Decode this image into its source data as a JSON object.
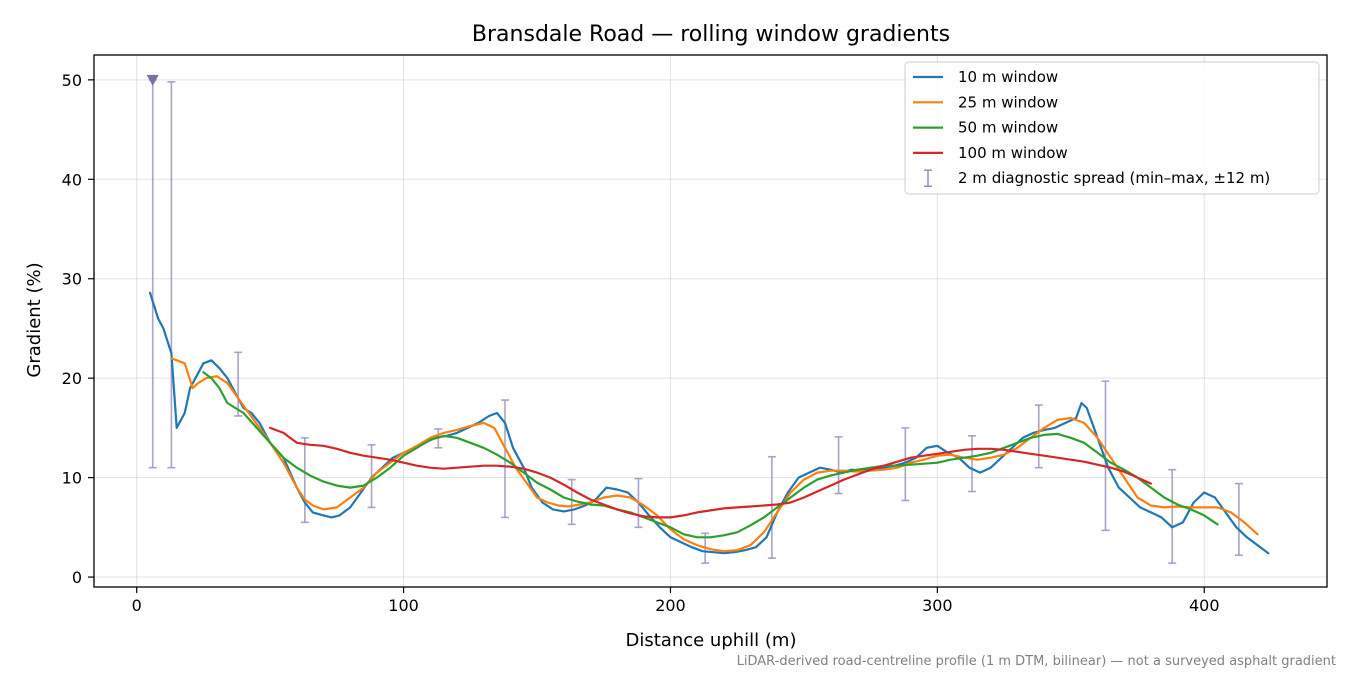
{
  "chart_data": {
    "type": "line",
    "title": "Bransdale Road — rolling window gradients",
    "xlabel": "Distance uphill (m)",
    "ylabel": "Gradient (%)",
    "footnote": "LiDAR-derived road-centreline profile (1 m DTM, bilinear) — not a surveyed asphalt gradient",
    "xlim": [
      -16,
      446
    ],
    "ylim": [
      -1,
      52.5
    ],
    "xticks": [
      0,
      100,
      200,
      300,
      400
    ],
    "yticks": [
      0,
      10,
      20,
      30,
      40,
      50
    ],
    "grid": true,
    "legend_position": "top-right",
    "series": [
      {
        "name": "10 m window",
        "color": "#1f77b4",
        "x": [
          5,
          8,
          10,
          13,
          15,
          18,
          20,
          23,
          25,
          28,
          31,
          34,
          37,
          40,
          43,
          46,
          50,
          55,
          60,
          63,
          66,
          70,
          73,
          76,
          80,
          84,
          88,
          92,
          96,
          100,
          104,
          108,
          112,
          116,
          120,
          124,
          128,
          132,
          135,
          138,
          141,
          145,
          148,
          152,
          156,
          160,
          164,
          168,
          172,
          176,
          180,
          184,
          188,
          192,
          196,
          200,
          204,
          208,
          212,
          216,
          220,
          224,
          228,
          232,
          236,
          240,
          244,
          248,
          252,
          256,
          260,
          264,
          268,
          272,
          276,
          280,
          284,
          288,
          292,
          296,
          300,
          304,
          308,
          312,
          316,
          320,
          324,
          328,
          332,
          336,
          340,
          344,
          348,
          352,
          354,
          356,
          360,
          364,
          368,
          372,
          376,
          380,
          384,
          388,
          392,
          396,
          400,
          404,
          408,
          412,
          416,
          420,
          424
        ],
        "y": [
          28.6,
          26,
          25,
          22.5,
          15,
          16.5,
          19,
          20.5,
          21.5,
          21.8,
          21,
          20,
          18.5,
          17,
          16.5,
          15.5,
          13.5,
          12,
          9,
          7.5,
          6.5,
          6.2,
          6,
          6.2,
          7,
          8.5,
          10,
          11,
          12,
          12.5,
          13,
          13.5,
          14,
          14.2,
          14.5,
          15,
          15.5,
          16.2,
          16.5,
          15.5,
          13,
          11,
          9,
          7.5,
          6.8,
          6.6,
          6.8,
          7.2,
          7.8,
          9,
          8.8,
          8.5,
          7.5,
          6.2,
          5,
          4,
          3.5,
          3,
          2.6,
          2.5,
          2.4,
          2.5,
          2.7,
          3,
          4,
          6.5,
          8.5,
          10,
          10.5,
          11,
          10.8,
          10.5,
          10.8,
          10.7,
          10.8,
          11,
          11.2,
          11.5,
          12,
          13,
          13.2,
          12.5,
          12,
          11,
          10.5,
          11,
          12,
          13,
          14,
          14.5,
          14.8,
          15,
          15.5,
          16,
          17.5,
          17,
          14,
          11,
          9,
          8,
          7,
          6.5,
          6,
          5,
          5.5,
          7.5,
          8.5,
          8,
          6.5,
          5,
          4,
          3.2,
          2.4
        ]
      },
      {
        "name": "25 m window",
        "color": "#ff7f0e",
        "x": [
          13,
          15,
          18,
          21,
          23,
          26,
          30,
          34,
          38,
          42,
          46,
          50,
          55,
          60,
          63,
          66,
          70,
          75,
          80,
          85,
          90,
          95,
          100,
          105,
          110,
          115,
          120,
          125,
          130,
          134,
          138,
          142,
          146,
          150,
          154,
          158,
          162,
          166,
          170,
          175,
          180,
          185,
          190,
          195,
          200,
          205,
          210,
          215,
          220,
          225,
          230,
          235,
          240,
          245,
          250,
          255,
          260,
          265,
          270,
          275,
          280,
          285,
          290,
          295,
          300,
          305,
          310,
          315,
          320,
          325,
          330,
          335,
          340,
          345,
          350,
          355,
          360,
          365,
          370,
          375,
          380,
          385,
          390,
          395,
          400,
          405,
          410,
          415,
          420
        ],
        "y": [
          22,
          21.8,
          21.5,
          19,
          19.5,
          20,
          20.2,
          19.5,
          18,
          16.5,
          15,
          13.5,
          11.5,
          9,
          7.8,
          7.2,
          6.8,
          7,
          8,
          9,
          10.5,
          11.5,
          12.5,
          13.2,
          14,
          14.5,
          14.8,
          15.2,
          15.5,
          15,
          13,
          11,
          9.5,
          8,
          7.5,
          7.2,
          7.1,
          7.3,
          7.5,
          8,
          8.2,
          8,
          7.2,
          6.2,
          4.8,
          3.8,
          3.2,
          2.8,
          2.6,
          2.7,
          3.2,
          4.5,
          6.5,
          8.5,
          9.8,
          10.5,
          10.7,
          10.7,
          10.6,
          10.7,
          10.8,
          11,
          11.5,
          11.8,
          12.2,
          12.3,
          12,
          11.8,
          12,
          12.3,
          13,
          14,
          15,
          15.8,
          16,
          15.5,
          14,
          12,
          10,
          8,
          7.2,
          7,
          7.1,
          7,
          7,
          7,
          6.5,
          5.5,
          4.3
        ]
      },
      {
        "name": "50 m window",
        "color": "#2ca02c",
        "x": [
          25,
          28,
          31,
          34,
          37,
          40,
          45,
          50,
          55,
          60,
          65,
          70,
          75,
          80,
          85,
          90,
          95,
          100,
          105,
          110,
          115,
          120,
          125,
          130,
          135,
          140,
          145,
          150,
          155,
          160,
          165,
          170,
          175,
          180,
          185,
          190,
          195,
          200,
          205,
          210,
          215,
          220,
          225,
          230,
          235,
          240,
          245,
          250,
          255,
          260,
          265,
          270,
          275,
          280,
          285,
          290,
          295,
          300,
          305,
          310,
          315,
          320,
          325,
          330,
          335,
          340,
          345,
          350,
          355,
          360,
          365,
          370,
          375,
          380,
          385,
          390,
          395,
          400,
          405
        ],
        "y": [
          20.6,
          20,
          19,
          17.5,
          17,
          16.5,
          15,
          13.5,
          12,
          11,
          10.2,
          9.6,
          9.2,
          9,
          9.2,
          10,
          11,
          12.2,
          13,
          13.8,
          14.2,
          14,
          13.5,
          13,
          12.3,
          11.5,
          10.5,
          9.5,
          8.8,
          8,
          7.6,
          7.3,
          7.2,
          6.8,
          6.5,
          6,
          5.5,
          5,
          4.3,
          4,
          4,
          4.2,
          4.5,
          5.2,
          6,
          7,
          8,
          9,
          9.8,
          10.2,
          10.5,
          10.8,
          11,
          11.2,
          11.2,
          11.3,
          11.4,
          11.5,
          11.8,
          12,
          12.2,
          12.5,
          13,
          13.5,
          14,
          14.3,
          14.4,
          14,
          13.5,
          12.5,
          11.5,
          10.8,
          10,
          9,
          8,
          7.3,
          6.8,
          6.2,
          5.3
        ]
      },
      {
        "name": "100 m window",
        "color": "#d62728",
        "x": [
          50,
          55,
          60,
          65,
          70,
          75,
          80,
          85,
          90,
          95,
          100,
          105,
          110,
          115,
          120,
          125,
          130,
          135,
          140,
          145,
          150,
          155,
          160,
          165,
          170,
          175,
          180,
          185,
          190,
          195,
          200,
          205,
          210,
          215,
          220,
          225,
          230,
          235,
          240,
          245,
          250,
          255,
          260,
          265,
          270,
          275,
          280,
          285,
          290,
          295,
          300,
          305,
          310,
          315,
          320,
          325,
          330,
          335,
          340,
          345,
          350,
          355,
          360,
          365,
          370,
          375,
          380
        ],
        "y": [
          15,
          14.5,
          13.5,
          13.3,
          13.2,
          12.9,
          12.5,
          12.2,
          12,
          11.8,
          11.5,
          11.2,
          11,
          10.9,
          11,
          11.1,
          11.2,
          11.2,
          11.1,
          10.9,
          10.5,
          10,
          9.3,
          8.5,
          7.8,
          7.3,
          6.8,
          6.4,
          6.1,
          6,
          6,
          6.2,
          6.5,
          6.7,
          6.9,
          7,
          7.1,
          7.2,
          7.3,
          7.5,
          8,
          8.6,
          9.2,
          9.8,
          10.3,
          10.8,
          11.2,
          11.6,
          12,
          12.2,
          12.4,
          12.6,
          12.8,
          12.9,
          12.9,
          12.8,
          12.6,
          12.4,
          12.2,
          12,
          11.8,
          11.6,
          11.3,
          11,
          10.6,
          10,
          9.4
        ]
      }
    ],
    "error_bars": {
      "name": "2 m diagnostic spread (min–max, ±12 m)",
      "color": "#9b93c0",
      "x": [
        6,
        13,
        38,
        63,
        88,
        113,
        138,
        163,
        188,
        213,
        238,
        263,
        288,
        313,
        338,
        363,
        388,
        413
      ],
      "low": [
        11,
        11,
        16.2,
        5.5,
        7,
        13,
        6,
        5.3,
        5,
        1.4,
        1.9,
        8.4,
        7.7,
        8.6,
        11,
        4.7,
        1.4,
        2.2
      ],
      "high": [
        50,
        49.8,
        22.6,
        14,
        13.3,
        14.9,
        17.8,
        9.8,
        9.9,
        4.4,
        12.1,
        14.1,
        15,
        14.2,
        17.3,
        19.7,
        10.8,
        9.4
      ]
    },
    "marker": {
      "x": 6,
      "y": 50,
      "shape": "triangle-down",
      "color": "#7b6fa8"
    }
  }
}
